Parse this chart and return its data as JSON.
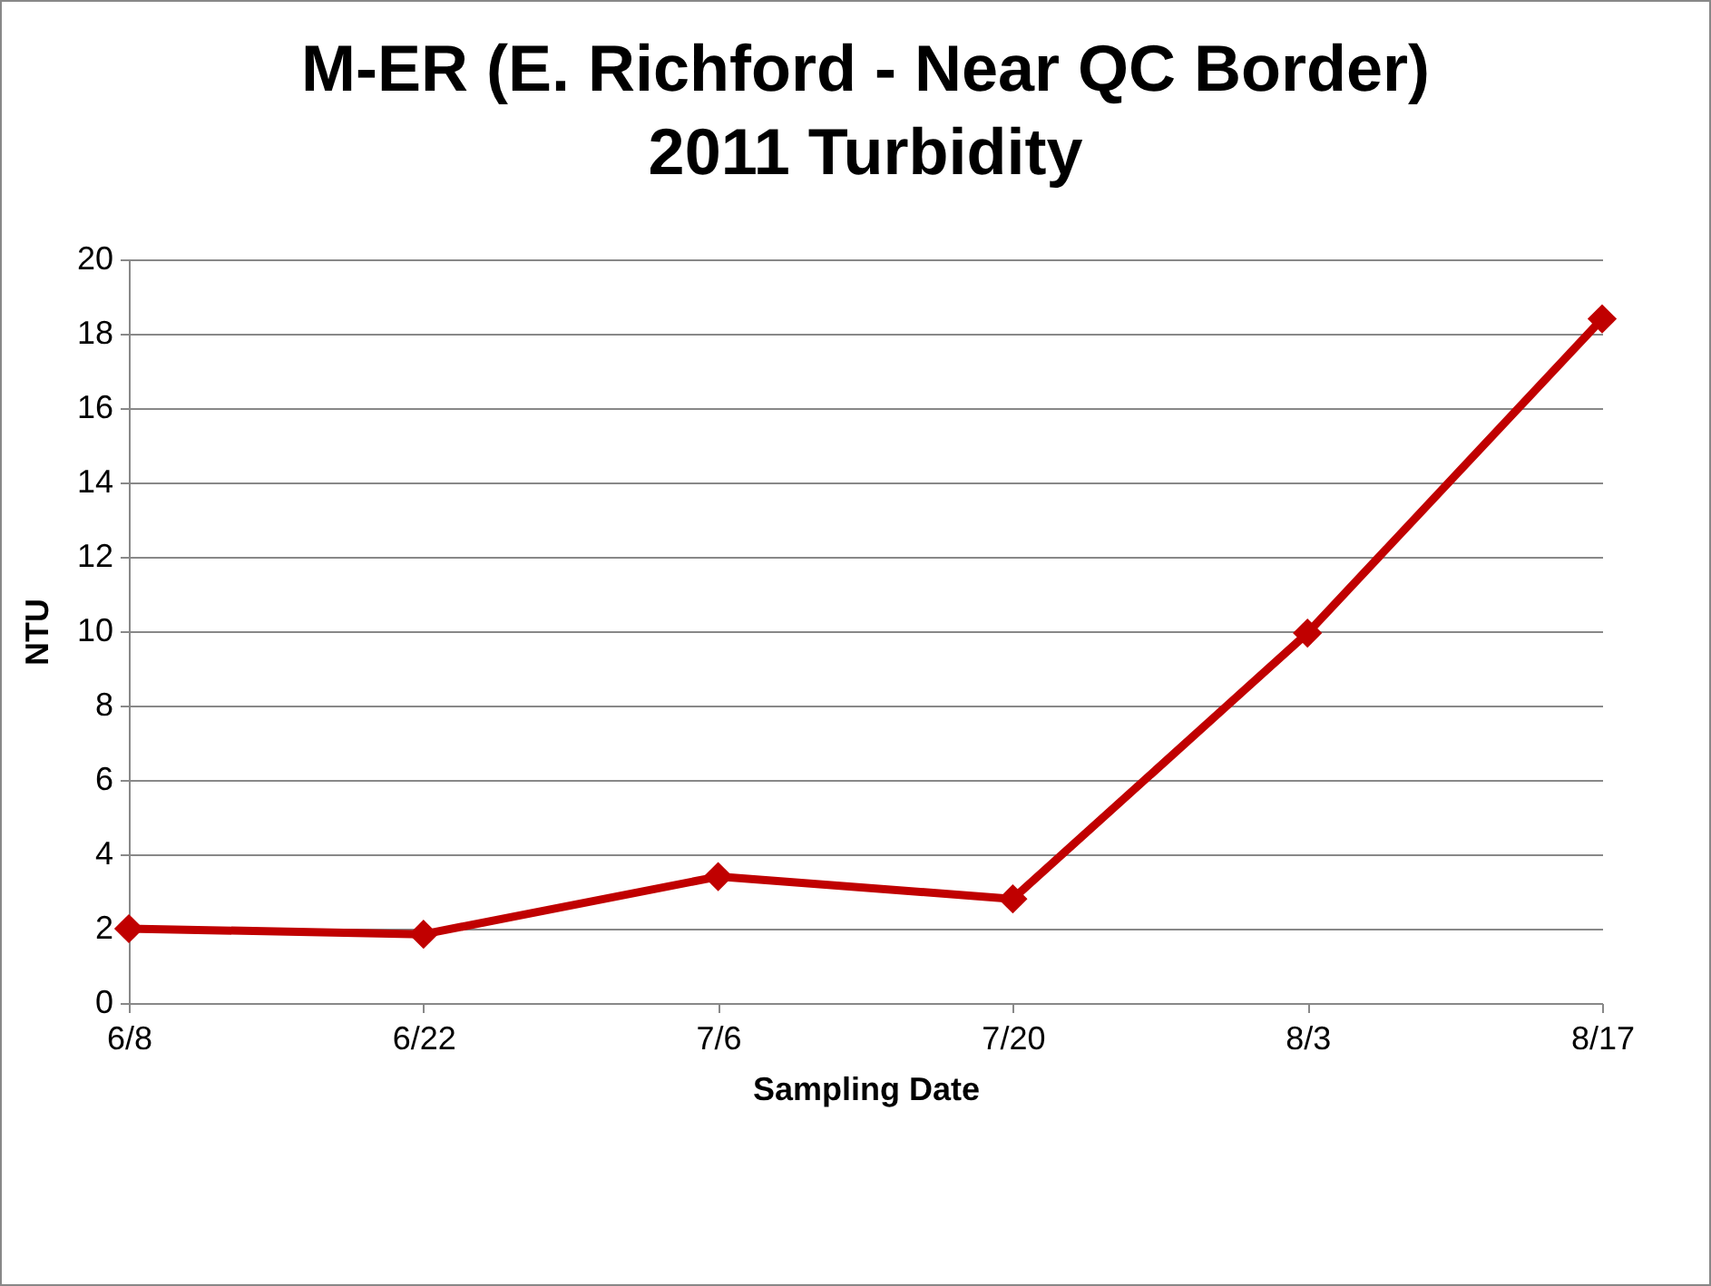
{
  "chart_data": {
    "type": "line",
    "title": "M-ER (E. Richford - Near QC Border)\n2011 Turbidity",
    "xlabel": "Sampling Date",
    "ylabel": "NTU",
    "categories": [
      "6/8",
      "6/22",
      "7/6",
      "7/20",
      "8/3",
      "8/17"
    ],
    "series": [
      {
        "color": "#c00000",
        "values": [
          2.0,
          1.85,
          3.4,
          2.8,
          9.95,
          18.4
        ]
      }
    ],
    "ylim": [
      0,
      20
    ],
    "yticks": [
      0,
      2,
      4,
      6,
      8,
      10,
      12,
      14,
      16,
      18,
      20
    ],
    "grid": "y",
    "marker": "diamond",
    "line_style": "solid"
  }
}
